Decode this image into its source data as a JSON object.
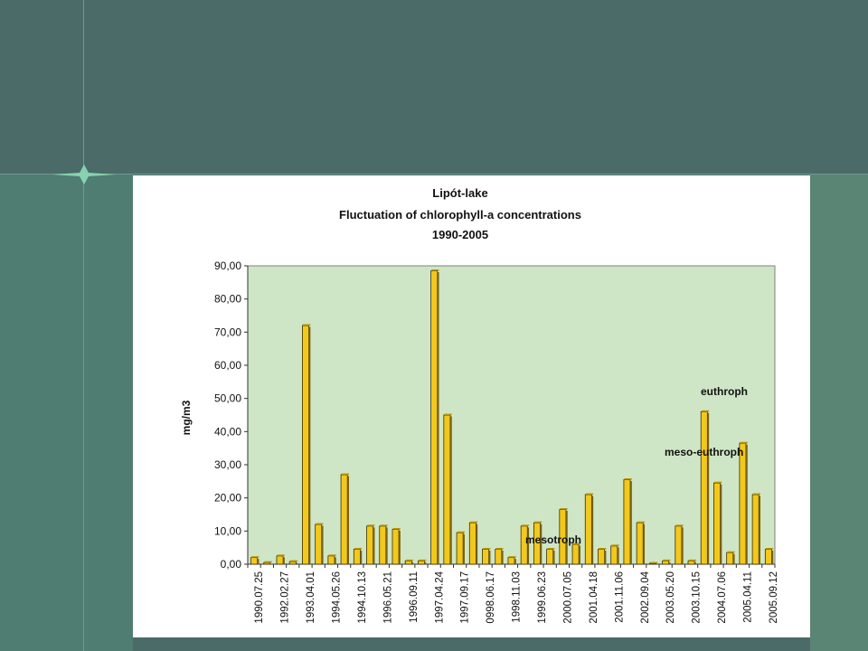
{
  "chart_data": {
    "type": "bar",
    "title_lines": [
      "Lipót-lake",
      "Fluctuation of chlorophyll-a concentrations",
      "1990-2005"
    ],
    "ylabel": "mg/m3",
    "xlabel": "",
    "ylim": [
      0,
      90
    ],
    "yticks": [
      "0,00",
      "10,00",
      "20,00",
      "30,00",
      "40,00",
      "50,00",
      "60,00",
      "70,00",
      "80,00",
      "90,00"
    ],
    "grid": false,
    "plot_background": "#cfe6c6",
    "bar_color": "#f2c81c",
    "x_tick_labels": [
      "1990.07.25",
      "1992.02.27",
      "1993.04.01",
      "1994.05.26",
      "1994.10.13",
      "1996.05.21",
      "1996.09.11",
      "1997.04.24",
      "1997.09.17",
      "0998.06.17",
      "1998.11.03",
      "1999.06.23",
      "2000.07.05",
      "2001.04.18",
      "2001.11.06",
      "2002.09.04",
      "2003.05.20",
      "2003.10.15",
      "2004.07.06",
      "2005.04.11",
      "2005.09.12"
    ],
    "values": [
      2,
      0.5,
      2.5,
      0.8,
      72,
      12,
      2.5,
      27,
      4.5,
      11.5,
      11.5,
      10.5,
      1,
      1,
      88.5,
      45,
      9.5,
      12.5,
      4.5,
      4.5,
      2,
      11.5,
      12.5,
      4.5,
      16.5,
      6,
      21,
      4.5,
      5.5,
      25.5,
      12.5,
      0.2,
      1,
      11.5,
      1,
      46,
      24.5,
      3.5,
      36.5,
      21,
      4.5
    ],
    "annotations": [
      "euthroph",
      "meso-euthroph",
      "mesotroph"
    ]
  }
}
